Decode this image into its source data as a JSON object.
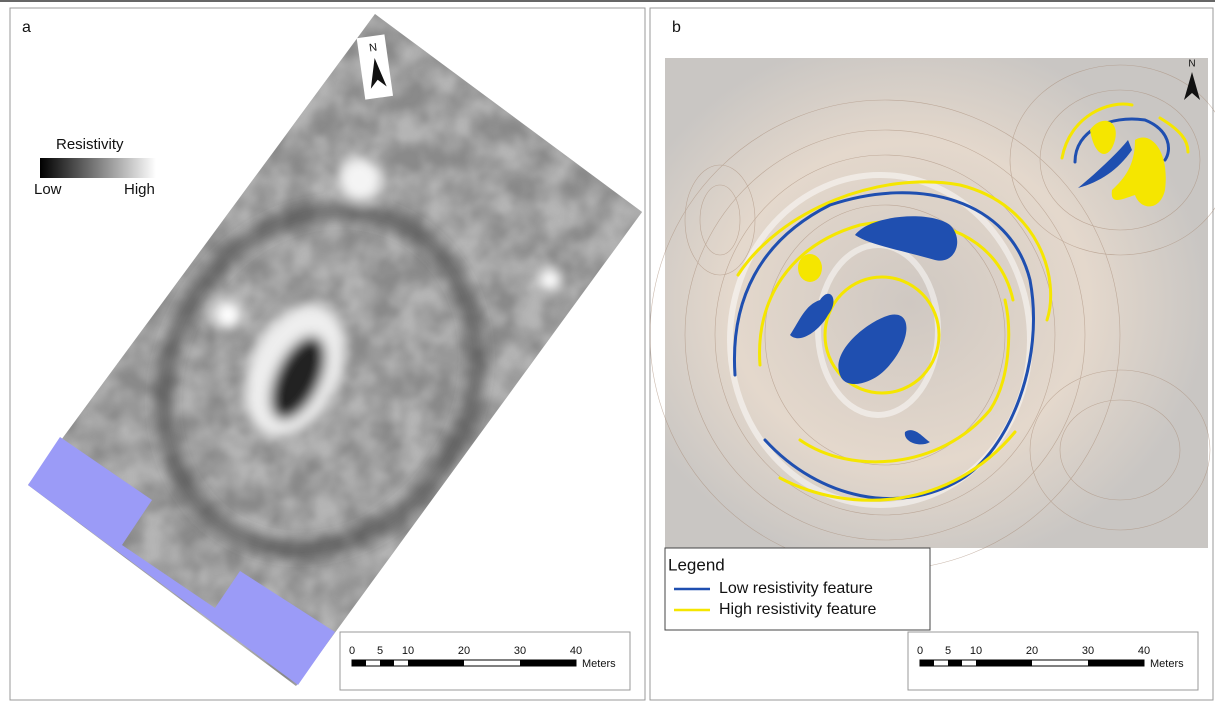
{
  "panels": [
    {
      "label": "a",
      "north": "N",
      "legend": {
        "title": "Resistivity",
        "low": "Low",
        "high": "High"
      },
      "scale": {
        "ticks": [
          "0",
          "5",
          "10",
          "20",
          "30",
          "40"
        ],
        "unit": "Meters"
      }
    },
    {
      "label": "b",
      "north": "N",
      "legend": {
        "title": "Legend",
        "items": [
          "Low resistivity feature",
          "High resistivity feature"
        ]
      },
      "scale": {
        "ticks": [
          "0",
          "5",
          "10",
          "20",
          "30",
          "40"
        ],
        "unit": "Meters"
      }
    }
  ]
}
